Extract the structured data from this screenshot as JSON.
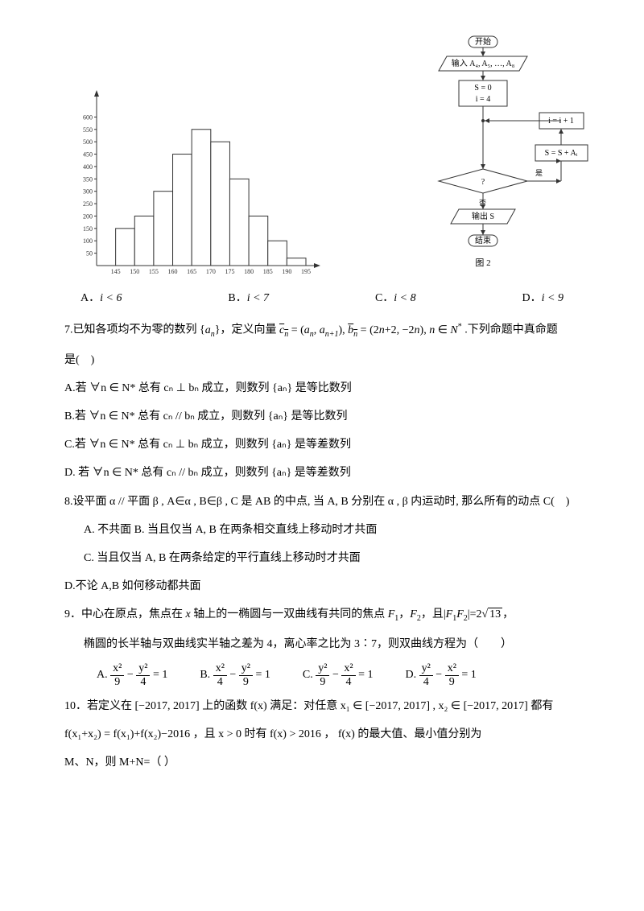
{
  "histogram": {
    "type": "histogram",
    "background_color": "#ffffff",
    "axis_color": "#333333",
    "bar_fill": "#ffffff",
    "bar_stroke": "#333333",
    "y_ticks": [
      50,
      100,
      150,
      200,
      250,
      300,
      350,
      400,
      450,
      500,
      550,
      600
    ],
    "y_max": 650,
    "x_labels": [
      "145",
      "150",
      "155",
      "160",
      "165",
      "170",
      "175",
      "180",
      "185",
      "190",
      "195"
    ],
    "values": [
      0,
      150,
      200,
      300,
      450,
      550,
      500,
      350,
      200,
      100,
      30
    ],
    "tick_fontsize": 8
  },
  "flowchart": {
    "type": "flowchart",
    "caption": "图 2",
    "background_color": "#ffffff",
    "stroke_color": "#333333",
    "text_fontsize": 10,
    "nodes": {
      "start": "开始",
      "input": "输入 A₄, A₅, …, A₈",
      "init_s": "S = 0",
      "init_i": "i = 4",
      "inc": "i = i + 1",
      "sum": "S = S + Aᵢ",
      "cond": "?",
      "out": "输出 S",
      "end": "结束"
    }
  },
  "q6_options": {
    "A": "i < 6",
    "B": "i < 7",
    "C": "i < 8",
    "D": "i < 9"
  },
  "q7": {
    "stem_pre": "7.已知各项均不为零的数列",
    "stem_mid": "，定义向量",
    "stem_end": ".下列命题中真命题",
    "stem_last": "是(　)",
    "cn_def": "cₙ = (aₙ, aₙ₊₁)",
    "bn_def": "bₙ = (2n+2, −2n), n ∈ N*",
    "opts": {
      "A": "A.若 ∀n ∈ N* 总有 cₙ ⊥ bₙ 成立，则数列 {aₙ} 是等比数列",
      "B": "B.若 ∀n ∈ N* 总有 cₙ // bₙ 成立，则数列 {aₙ} 是等比数列",
      "C": "C.若 ∀n ∈ N* 总有 cₙ ⊥ bₙ 成立，则数列 {aₙ} 是等差数列",
      "D": "D.  若 ∀n ∈ N* 总有 cₙ // bₙ 成立，则数列 {aₙ} 是等差数列"
    }
  },
  "q8": {
    "stem": "8.设平面 α // 平面 β , A∈α , B∈β , C 是 AB 的中点, 当 A, B 分别在 α , β 内运动时, 那么所有的动点 C(　)",
    "A": "A. 不共面 B. 当且仅当 A, B 在两条相交直线上移动时才共面",
    "C": "C. 当且仅当 A, B 在两条给定的平行直线上移动时才共面",
    "D": "D.不论 A,B 如何移动都共面"
  },
  "q9": {
    "line1": "9．中心在原点，焦点在 x 轴上的一椭圆与一双曲线有共同的焦点 F₁，F₂，且|F₁F₂|=2√13，",
    "line2": "椭圆的长半轴与双曲线实半轴之差为 4，离心率之比为 3∶7，则双曲线方程为（　　）",
    "opts": {
      "A": {
        "label": "A.",
        "num1": "x²",
        "den1": "9",
        "num2": "y²",
        "den2": "4"
      },
      "B": {
        "label": "B.",
        "num1": "x²",
        "den1": "4",
        "num2": "y²",
        "den2": "9"
      },
      "C": {
        "label": "C.",
        "num1": "y²",
        "den1": "9",
        "num2": "x²",
        "den2": "4"
      },
      "D": {
        "label": "D.",
        "num1": "y²",
        "den1": "4",
        "num2": "x²",
        "den2": "9"
      }
    }
  },
  "q10": {
    "line1_a": "10．若定义在",
    "interval": "[−2017, 2017]",
    "line1_b": "上的函数 f(x) 满足：对任意 x₁ ∈",
    "line1_c": ", x₂ ∈",
    "line1_d": "都有",
    "line2": "f(x₁+x₂) = f(x₁)+f(x₂)−2016 ，且 x > 0 时有 f(x) > 2016 ， f(x) 的最大值、最小值分别为",
    "line3": "M、N，则 M+N=（ ）"
  }
}
